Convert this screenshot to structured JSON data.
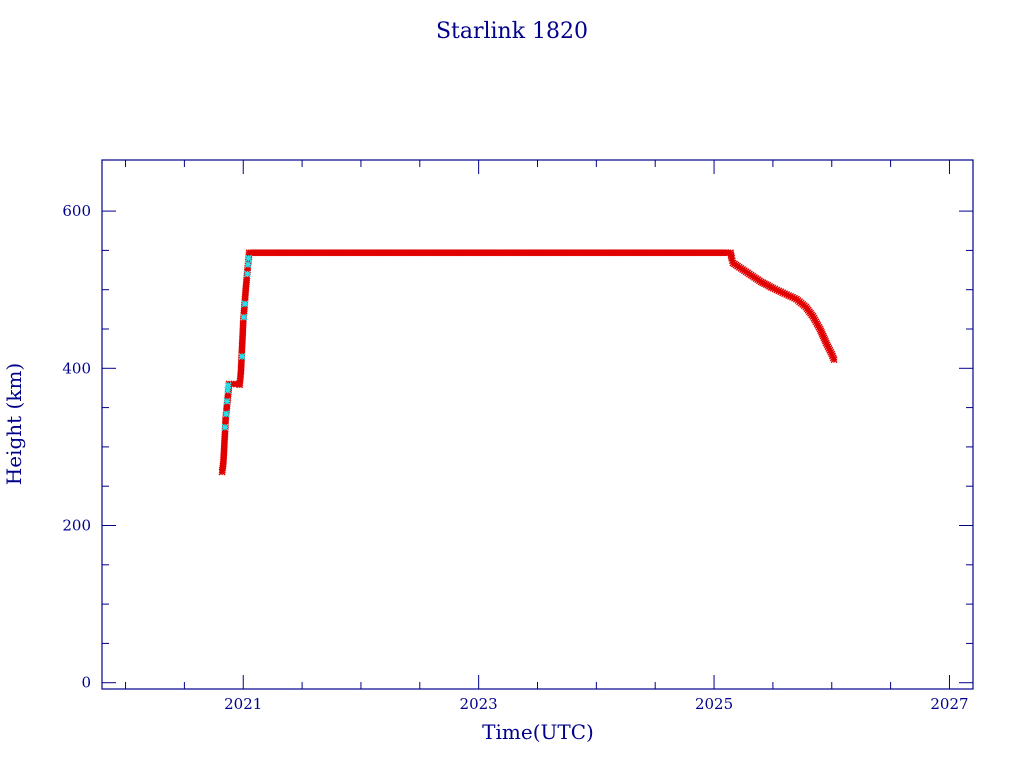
{
  "chart_data": {
    "type": "scatter",
    "title": "Starlink 1820",
    "xlabel": "Time(UTC)",
    "ylabel": "Height (km)",
    "xlim": [
      2019.8,
      2027.2
    ],
    "ylim": [
      -8,
      665
    ],
    "xticks": [
      {
        "value": 2021,
        "label": "2021"
      },
      {
        "value": 2023,
        "label": "2023"
      },
      {
        "value": 2025,
        "label": "2025"
      },
      {
        "value": 2027,
        "label": "2027"
      }
    ],
    "yticks": [
      {
        "value": 0,
        "label": "0"
      },
      {
        "value": 200,
        "label": "200"
      },
      {
        "value": 400,
        "label": "400"
      },
      {
        "value": 600,
        "label": "600"
      }
    ],
    "grid": false,
    "colors": {
      "axis": "#00008b",
      "primary_series": "#e00000",
      "secondary_series": "#22e5ee"
    },
    "series": [
      {
        "color": "#e00000",
        "marker": "star",
        "points": [
          [
            2020.82,
            268
          ],
          [
            2020.83,
            278
          ],
          [
            2020.835,
            290
          ],
          [
            2020.84,
            305
          ],
          [
            2020.845,
            318
          ],
          [
            2020.85,
            335
          ],
          [
            2020.86,
            350
          ],
          [
            2020.88,
            380
          ],
          [
            2020.9,
            380
          ],
          [
            2020.92,
            380
          ],
          [
            2020.94,
            380
          ],
          [
            2020.96,
            380
          ],
          [
            2020.97,
            379
          ],
          [
            2020.98,
            395
          ],
          [
            2020.985,
            410
          ],
          [
            2020.99,
            428
          ],
          [
            2020.995,
            442
          ],
          [
            2021.0,
            460
          ],
          [
            2021.01,
            478
          ],
          [
            2021.02,
            498
          ],
          [
            2021.03,
            515
          ],
          [
            2021.05,
            547
          ],
          [
            2021.2,
            547
          ],
          [
            2021.4,
            547
          ],
          [
            2021.6,
            547
          ],
          [
            2021.8,
            547
          ],
          [
            2022.0,
            547
          ],
          [
            2022.2,
            547
          ],
          [
            2022.4,
            547
          ],
          [
            2022.6,
            547
          ],
          [
            2022.8,
            547
          ],
          [
            2023.0,
            547
          ],
          [
            2023.2,
            547
          ],
          [
            2023.4,
            547
          ],
          [
            2023.6,
            547
          ],
          [
            2023.8,
            547
          ],
          [
            2024.0,
            547
          ],
          [
            2024.2,
            547
          ],
          [
            2024.4,
            547
          ],
          [
            2024.6,
            547
          ],
          [
            2024.8,
            547
          ],
          [
            2025.0,
            547
          ],
          [
            2025.12,
            547
          ],
          [
            2025.14,
            547
          ],
          [
            2025.15,
            540
          ],
          [
            2025.16,
            534
          ],
          [
            2025.2,
            530
          ],
          [
            2025.3,
            520
          ],
          [
            2025.4,
            510
          ],
          [
            2025.5,
            502
          ],
          [
            2025.6,
            495
          ],
          [
            2025.7,
            488
          ],
          [
            2025.78,
            478
          ],
          [
            2025.84,
            466
          ],
          [
            2025.9,
            450
          ],
          [
            2025.96,
            430
          ],
          [
            2026.0,
            418
          ],
          [
            2026.02,
            411
          ]
        ]
      },
      {
        "color": "#22e5ee",
        "marker": "star",
        "points": [
          [
            2020.845,
            325
          ],
          [
            2020.855,
            342
          ],
          [
            2020.862,
            358
          ],
          [
            2020.868,
            372
          ],
          [
            2020.872,
            378
          ],
          [
            2020.99,
            415
          ],
          [
            2021.005,
            465
          ],
          [
            2021.015,
            482
          ],
          [
            2021.035,
            520
          ],
          [
            2021.04,
            532
          ],
          [
            2021.045,
            540
          ]
        ]
      }
    ]
  }
}
